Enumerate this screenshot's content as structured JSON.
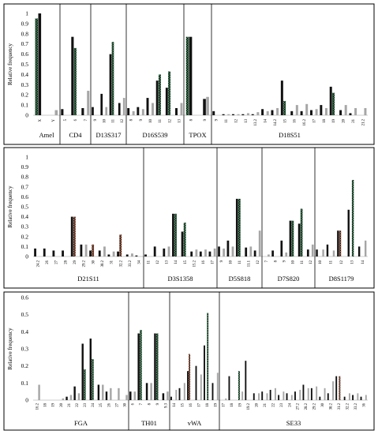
{
  "figure": {
    "series_colors": {
      "grey": "#a6a6a6",
      "black": "#111111",
      "green": "#3f8f5a",
      "red": "#b5573a",
      "orange": "#e2a36e"
    }
  },
  "chart_data": [
    {
      "type": "bar",
      "ylabel": "Relative frequency",
      "ylim": [
        0,
        1
      ],
      "yticks": [
        "0",
        "0.1",
        "0.2",
        "0.3",
        "0.4",
        "0.5",
        "0.6",
        "0.7",
        "0.8",
        "0.9",
        "1"
      ],
      "loci": [
        {
          "name": "Amel",
          "categories": [
            "X",
            "Y"
          ],
          "series": [
            {
              "color": "green",
              "values": [
                0.95,
                0.0
              ]
            },
            {
              "color": "black",
              "values": [
                1.0,
                0.0
              ]
            },
            {
              "color": "grey",
              "values": [
                0.0,
                0.05
              ]
            }
          ]
        },
        {
          "name": "CD4",
          "categories": [
            "5",
            "6",
            "7"
          ],
          "series": [
            {
              "color": "black",
              "values": [
                0.06,
                0.77,
                0.07
              ]
            },
            {
              "color": "green",
              "values": [
                0.0,
                0.66,
                0.0
              ]
            },
            {
              "color": "grey",
              "values": [
                0.0,
                0.0,
                0.24
              ]
            }
          ]
        },
        {
          "name": "D13S317",
          "categories": [
            "9",
            "10",
            "11",
            "12"
          ],
          "series": [
            {
              "color": "black",
              "values": [
                0.08,
                0.21,
                0.6,
                0.12
              ]
            },
            {
              "color": "green",
              "values": [
                0.0,
                0.0,
                0.72,
                0.0
              ]
            },
            {
              "color": "grey",
              "values": [
                0.0,
                0.08,
                0.0,
                0.17
              ]
            }
          ]
        },
        {
          "name": "D16S539",
          "categories": [
            "8",
            "9",
            "10",
            "11",
            "12",
            "13"
          ],
          "series": [
            {
              "color": "black",
              "values": [
                0.07,
                0.08,
                0.17,
                0.34,
                0.27,
                0.07
              ]
            },
            {
              "color": "green",
              "values": [
                0.0,
                0.0,
                0.0,
                0.4,
                0.43,
                0.0
              ]
            },
            {
              "color": "grey",
              "values": [
                0.04,
                0.06,
                0.12,
                0.0,
                0.0,
                0.12
              ]
            }
          ]
        },
        {
          "name": "TPOX",
          "categories": [
            "8",
            "9"
          ],
          "series": [
            {
              "color": "green",
              "values": [
                0.77,
                0.0
              ]
            },
            {
              "color": "black",
              "values": [
                0.77,
                0.16
              ]
            },
            {
              "color": "grey",
              "values": [
                0.0,
                0.18
              ]
            }
          ]
        },
        {
          "name": "D18S51",
          "categories": [
            "9",
            "11",
            "12",
            "13",
            "13.2",
            "14",
            "14.2",
            "15",
            "16",
            "16.2",
            "17",
            "18",
            "19",
            "20",
            "21",
            "21.2"
          ],
          "series": [
            {
              "color": "black",
              "values": [
                0.04,
                0.01,
                0.01,
                0.01,
                0.01,
                0.06,
                0.05,
                0.34,
                0.04,
                0.04,
                0.05,
                0.1,
                0.28,
                0.05,
                0.02,
                0.0
              ]
            },
            {
              "color": "green",
              "values": [
                0.0,
                0.0,
                0.0,
                0.0,
                0.0,
                0.0,
                0.0,
                0.14,
                0.0,
                0.0,
                0.0,
                0.0,
                0.22,
                0.0,
                0.0,
                0.0
              ]
            },
            {
              "color": "grey",
              "values": [
                0.0,
                0.01,
                0.01,
                0.02,
                0.03,
                0.04,
                0.07,
                0.0,
                0.1,
                0.11,
                0.06,
                0.07,
                0.0,
                0.1,
                0.07,
                0.07
              ]
            }
          ]
        }
      ]
    },
    {
      "type": "bar",
      "ylabel": "Relative frequency",
      "ylim": [
        0,
        1
      ],
      "yticks": [
        "0",
        "0.1",
        "0.2",
        "0.3",
        "0.4",
        "0.5",
        "0.6",
        "0.7",
        "0.8",
        "0.9",
        "1"
      ],
      "loci": [
        {
          "name": "D21S11",
          "categories": [
            "24.2",
            "26",
            "27",
            "28",
            "29",
            "29.2",
            "30",
            "30.2",
            "31",
            "32.2",
            "33.2",
            "34"
          ],
          "series": [
            {
              "color": "black",
              "values": [
                0.08,
                0.08,
                0.06,
                0.06,
                0.4,
                0.12,
                0.06,
                0.06,
                0.02,
                0.05,
                0.02,
                0.01
              ]
            },
            {
              "color": "red",
              "values": [
                0.0,
                0.0,
                0.0,
                0.0,
                0.4,
                0.0,
                0.12,
                0.0,
                0.0,
                0.22,
                0.0,
                0.0
              ]
            },
            {
              "color": "grey",
              "values": [
                0.0,
                0.0,
                0.0,
                0.0,
                0.0,
                0.12,
                0.0,
                0.1,
                0.05,
                0.0,
                0.03,
                0.0
              ]
            }
          ]
        },
        {
          "name": "D3S1358",
          "categories": [
            "11",
            "12",
            "13",
            "14",
            "15",
            "15.2",
            "16",
            "17"
          ],
          "series": [
            {
              "color": "black",
              "values": [
                0.02,
                0.1,
                0.08,
                0.43,
                0.25,
                0.05,
                0.05,
                0.05
              ]
            },
            {
              "color": "green",
              "values": [
                0.0,
                0.0,
                0.0,
                0.43,
                0.34,
                0.0,
                0.0,
                0.0
              ]
            },
            {
              "color": "grey",
              "values": [
                0.0,
                0.0,
                0.1,
                0.0,
                0.0,
                0.07,
                0.07,
                0.08
              ]
            }
          ]
        },
        {
          "name": "D5S818",
          "categories": [
            "9",
            "10",
            "11",
            "11.1",
            "12"
          ],
          "series": [
            {
              "color": "black",
              "values": [
                0.1,
                0.16,
                0.58,
                0.09,
                0.06
              ]
            },
            {
              "color": "green",
              "values": [
                0.0,
                0.0,
                0.58,
                0.0,
                0.0
              ]
            },
            {
              "color": "grey",
              "values": [
                0.08,
                0.1,
                0.0,
                0.1,
                0.26
              ]
            }
          ]
        },
        {
          "name": "D7S820",
          "categories": [
            "7",
            "8",
            "9",
            "10",
            "11",
            "12"
          ],
          "series": [
            {
              "color": "black",
              "values": [
                0.0,
                0.06,
                0.16,
                0.36,
                0.33,
                0.07
              ]
            },
            {
              "color": "green",
              "values": [
                0.0,
                0.0,
                0.0,
                0.36,
                0.48,
                0.0
              ]
            },
            {
              "color": "grey",
              "values": [
                0.02,
                0.0,
                0.04,
                0.0,
                0.0,
                0.12
              ]
            }
          ]
        },
        {
          "name": "D8S1179",
          "categories": [
            "10",
            "11",
            "12",
            "13",
            "14"
          ],
          "series": [
            {
              "color": "black",
              "values": [
                0.07,
                0.12,
                0.26,
                0.47,
                0.1
              ]
            },
            {
              "color": "red",
              "values": [
                0.0,
                0.0,
                0.26,
                0.0,
                0.0
              ]
            },
            {
              "color": "green",
              "values": [
                0.0,
                0.0,
                0.0,
                0.77,
                0.0
              ]
            },
            {
              "color": "grey",
              "values": [
                0.07,
                0.06,
                0.0,
                0.0,
                0.16
              ]
            }
          ]
        }
      ]
    },
    {
      "type": "bar",
      "ylabel": "Relative frequency",
      "ylim": [
        0,
        0.6
      ],
      "yticks": [
        "0",
        "0.1",
        "0.2",
        "0.3",
        "0.4",
        "0.5",
        "0.6"
      ],
      "loci": [
        {
          "name": "FGA",
          "categories": [
            "16.2",
            "18",
            "19",
            "20",
            "21",
            "22",
            "23",
            "24",
            "25",
            "26",
            "27",
            "30"
          ],
          "series": [
            {
              "color": "black",
              "values": [
                0.0,
                0.0,
                0.0,
                0.0,
                0.02,
                0.08,
                0.33,
                0.36,
                0.09,
                0.05,
                0.0,
                0.0
              ]
            },
            {
              "color": "green",
              "values": [
                0.0,
                0.0,
                0.0,
                0.0,
                0.0,
                0.0,
                0.18,
                0.24,
                0.0,
                0.0,
                0.0,
                0.0
              ]
            },
            {
              "color": "grey",
              "values": [
                0.09,
                0.0,
                0.0,
                0.01,
                0.03,
                0.04,
                0.0,
                0.0,
                0.09,
                0.07,
                0.07,
                0.03
              ]
            }
          ]
        },
        {
          "name": "TH01",
          "categories": [
            "6",
            "7",
            "8",
            "9",
            "9.3"
          ],
          "series": [
            {
              "color": "black",
              "values": [
                0.05,
                0.39,
                0.1,
                0.39,
                0.04
              ]
            },
            {
              "color": "green",
              "values": [
                0.0,
                0.41,
                0.0,
                0.39,
                0.0
              ]
            },
            {
              "color": "grey",
              "values": [
                0.05,
                0.0,
                0.1,
                0.0,
                0.05
              ]
            }
          ]
        },
        {
          "name": "vWA",
          "categories": [
            "14",
            "15",
            "16",
            "17",
            "18",
            "19"
          ],
          "series": [
            {
              "color": "black",
              "values": [
                0.02,
                0.07,
                0.17,
                0.2,
                0.32,
                0.1
              ]
            },
            {
              "color": "red",
              "values": [
                0.0,
                0.0,
                0.27,
                0.0,
                0.0,
                0.0
              ]
            },
            {
              "color": "green",
              "values": [
                0.0,
                0.0,
                0.0,
                0.0,
                0.51,
                0.0
              ]
            },
            {
              "color": "grey",
              "values": [
                0.06,
                0.1,
                0.0,
                0.15,
                0.0,
                0.16
              ]
            }
          ]
        },
        {
          "name": "SE33",
          "categories": [
            "17",
            "18",
            "19",
            "19.2",
            "20",
            "21",
            "22",
            "23",
            "24",
            "27.2",
            "28.2",
            "29.2",
            "30",
            "30.2",
            "31.2",
            "32.2",
            "33.2",
            "36"
          ],
          "series": [
            {
              "color": "black",
              "values": [
                0.0,
                0.14,
                0.0,
                0.23,
                0.04,
                0.05,
                0.06,
                0.03,
                0.04,
                0.05,
                0.09,
                0.07,
                0.02,
                0.04,
                0.14,
                0.02,
                0.03,
                0.02
              ]
            },
            {
              "color": "green",
              "values": [
                0.0,
                0.0,
                0.17,
                0.0,
                0.0,
                0.0,
                0.0,
                0.0,
                0.0,
                0.0,
                0.0,
                0.0,
                0.0,
                0.0,
                0.0,
                0.0,
                0.0,
                0.0
              ]
            },
            {
              "color": "red",
              "values": [
                0.0,
                0.0,
                0.0,
                0.0,
                0.0,
                0.0,
                0.0,
                0.0,
                0.0,
                0.0,
                0.0,
                0.0,
                0.0,
                0.0,
                0.14,
                0.0,
                0.0,
                0.0
              ]
            },
            {
              "color": "grey",
              "values": [
                0.01,
                0.0,
                0.05,
                0.0,
                0.04,
                0.04,
                0.07,
                0.05,
                0.03,
                0.06,
                0.07,
                0.08,
                0.07,
                0.11,
                0.0,
                0.04,
                0.04,
                0.03
              ]
            }
          ]
        }
      ]
    }
  ]
}
